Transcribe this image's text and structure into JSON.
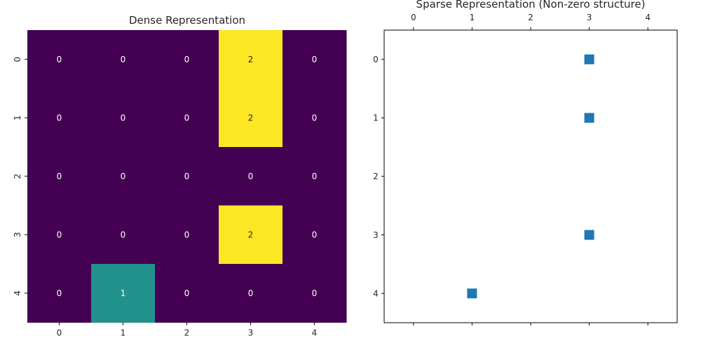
{
  "chart_data": [
    {
      "type": "heatmap",
      "title": "Dense Representation",
      "xlabel": "",
      "ylabel": "",
      "x_ticks": [
        "0",
        "1",
        "2",
        "3",
        "4"
      ],
      "y_ticks": [
        "0",
        "1",
        "2",
        "3",
        "4"
      ],
      "values": [
        [
          0,
          0,
          0,
          2,
          0
        ],
        [
          0,
          0,
          0,
          2,
          0
        ],
        [
          0,
          0,
          0,
          0,
          0
        ],
        [
          0,
          0,
          0,
          2,
          0
        ],
        [
          0,
          1,
          0,
          0,
          0
        ]
      ],
      "vmin": 0,
      "vmax": 2,
      "colormap": "viridis",
      "colors": {
        "low": "#440154",
        "mid": "#21918c",
        "high": "#fde725"
      },
      "annotations": true
    },
    {
      "type": "scatter",
      "title": "Sparse Representation (Non-zero structure)",
      "xlabel": "",
      "ylabel": "",
      "x_ticks": [
        "0",
        "1",
        "2",
        "3",
        "4"
      ],
      "y_ticks": [
        "0",
        "1",
        "2",
        "3",
        "4"
      ],
      "x_axis_position": "top",
      "y_inverted": true,
      "xlim": [
        -0.5,
        4.5
      ],
      "ylim": [
        4.5,
        -0.5
      ],
      "marker": "square",
      "marker_color": "#1f77b4",
      "points": [
        {
          "row": 0,
          "col": 3
        },
        {
          "row": 1,
          "col": 3
        },
        {
          "row": 3,
          "col": 3
        },
        {
          "row": 4,
          "col": 1
        }
      ]
    }
  ]
}
